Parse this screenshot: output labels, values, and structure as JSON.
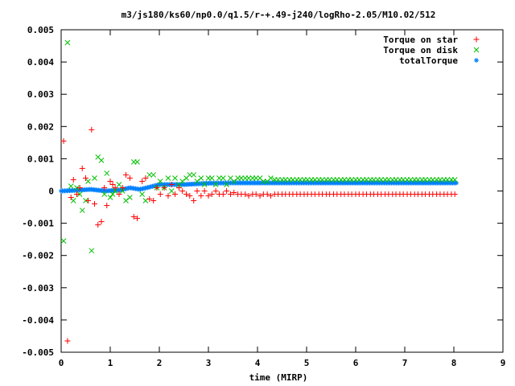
{
  "chart_data": {
    "type": "scatter",
    "title": "m3/js180/ks60/np0.0/q1.5/r-+.49-j240/logRho-2.05/M10.02/512",
    "xlabel": "time (MIRP)",
    "ylabel": "",
    "xlim": [
      0,
      9
    ],
    "ylim": [
      -0.005,
      0.005
    ],
    "x_ticks": [
      "0",
      "1",
      "2",
      "3",
      "4",
      "5",
      "6",
      "7",
      "8",
      "9"
    ],
    "y_ticks": [
      "-0.005",
      "-0.004",
      "-0.003",
      "-0.002",
      "-0.001",
      "0",
      "0.001",
      "0.002",
      "0.003",
      "0.004",
      "0.005"
    ],
    "grid": false,
    "legend_position": "top-right",
    "series": [
      {
        "name": "Torque on star",
        "marker": "plus",
        "color": "#ff0000",
        "points": [
          [
            0.05,
            0.00155
          ],
          [
            0.13,
            -0.00465
          ],
          [
            0.2,
            -0.0002
          ],
          [
            0.25,
            0.00035
          ],
          [
            0.32,
            -0.0001
          ],
          [
            0.38,
            0.0001
          ],
          [
            0.43,
            0.0007
          ],
          [
            0.5,
            0.0004
          ],
          [
            0.55,
            -0.0003
          ],
          [
            0.62,
            0.0019
          ],
          [
            0.68,
            -0.0004
          ],
          [
            0.75,
            -0.00105
          ],
          [
            0.82,
            -0.00095
          ],
          [
            0.88,
            0.0001
          ],
          [
            0.93,
            -0.00045
          ],
          [
            1.0,
            0.0003
          ],
          [
            1.05,
            0.0002
          ],
          [
            1.1,
            0.0001
          ],
          [
            1.18,
            -0.0001
          ],
          [
            1.25,
            0.0001
          ],
          [
            1.32,
            0.0005
          ],
          [
            1.4,
            0.0004
          ],
          [
            1.48,
            -0.0008
          ],
          [
            1.55,
            -0.00085
          ],
          [
            1.65,
            0.0003
          ],
          [
            1.72,
            0.0004
          ],
          [
            1.8,
            -0.00025
          ],
          [
            1.88,
            -0.0003
          ],
          [
            1.95,
            0.0001
          ],
          [
            2.02,
            -0.0001
          ],
          [
            2.1,
            0.0001
          ],
          [
            2.18,
            -0.00015
          ],
          [
            2.25,
            0.0002
          ],
          [
            2.32,
            -0.0001
          ],
          [
            2.4,
            0.0001
          ],
          [
            2.47,
            0.0
          ],
          [
            2.55,
            -0.0001
          ],
          [
            2.62,
            -0.00015
          ],
          [
            2.7,
            -0.0003
          ],
          [
            2.77,
            0.0
          ],
          [
            2.85,
            -0.00015
          ],
          [
            2.92,
            0.0
          ],
          [
            3.0,
            -0.00015
          ],
          [
            3.07,
            -0.0001
          ],
          [
            3.15,
            0.0
          ],
          [
            3.22,
            -0.0001
          ],
          [
            3.3,
            -0.0001
          ],
          [
            3.37,
            0.0
          ],
          [
            3.45,
            -0.0001
          ],
          [
            3.52,
            -5e-05
          ],
          [
            3.6,
            -0.0001
          ],
          [
            3.67,
            -0.0001
          ],
          [
            3.75,
            -0.0001
          ],
          [
            3.82,
            -0.00015
          ],
          [
            3.9,
            -0.0001
          ],
          [
            3.97,
            -0.0001
          ],
          [
            4.05,
            -0.00015
          ],
          [
            4.12,
            -0.0001
          ],
          [
            4.2,
            -0.0001
          ],
          [
            4.27,
            -0.00015
          ],
          [
            4.35,
            -0.0001
          ],
          [
            4.42,
            -0.0001
          ],
          [
            4.5,
            -0.0001
          ],
          [
            4.57,
            -0.0001
          ],
          [
            4.65,
            -0.0001
          ],
          [
            4.72,
            -0.0001
          ],
          [
            4.8,
            -0.0001
          ],
          [
            4.87,
            -0.0001
          ],
          [
            4.95,
            -0.0001
          ],
          [
            5.02,
            -0.0001
          ],
          [
            5.1,
            -0.0001
          ],
          [
            5.17,
            -0.0001
          ],
          [
            5.25,
            -0.0001
          ],
          [
            5.32,
            -0.0001
          ],
          [
            5.4,
            -0.0001
          ],
          [
            5.47,
            -0.0001
          ],
          [
            5.55,
            -0.0001
          ],
          [
            5.62,
            -0.0001
          ],
          [
            5.7,
            -0.0001
          ],
          [
            5.77,
            -0.0001
          ],
          [
            5.85,
            -0.0001
          ],
          [
            5.92,
            -0.0001
          ],
          [
            6.0,
            -0.0001
          ],
          [
            6.07,
            -0.0001
          ],
          [
            6.15,
            -0.0001
          ],
          [
            6.22,
            -0.0001
          ],
          [
            6.3,
            -0.0001
          ],
          [
            6.37,
            -0.0001
          ],
          [
            6.45,
            -0.0001
          ],
          [
            6.52,
            -0.0001
          ],
          [
            6.6,
            -0.0001
          ],
          [
            6.67,
            -0.0001
          ],
          [
            6.75,
            -0.0001
          ],
          [
            6.82,
            -0.0001
          ],
          [
            6.9,
            -0.0001
          ],
          [
            6.97,
            -0.0001
          ],
          [
            7.05,
            -0.0001
          ],
          [
            7.12,
            -0.0001
          ],
          [
            7.2,
            -0.0001
          ],
          [
            7.27,
            -0.0001
          ],
          [
            7.35,
            -0.0001
          ],
          [
            7.42,
            -0.0001
          ],
          [
            7.5,
            -0.0001
          ],
          [
            7.57,
            -0.0001
          ],
          [
            7.65,
            -0.0001
          ],
          [
            7.72,
            -0.0001
          ],
          [
            7.8,
            -0.0001
          ],
          [
            7.87,
            -0.0001
          ],
          [
            7.95,
            -0.0001
          ],
          [
            8.02,
            -0.0001
          ]
        ]
      },
      {
        "name": "Torque on disk",
        "marker": "cross",
        "color": "#00c000",
        "points": [
          [
            0.05,
            -0.00155
          ],
          [
            0.13,
            0.0046
          ],
          [
            0.2,
            0.00015
          ],
          [
            0.25,
            -0.0003
          ],
          [
            0.32,
            0.0001
          ],
          [
            0.38,
            -0.0001
          ],
          [
            0.43,
            -0.0006
          ],
          [
            0.5,
            -0.0003
          ],
          [
            0.55,
            0.0003
          ],
          [
            0.62,
            -0.00185
          ],
          [
            0.68,
            0.0004
          ],
          [
            0.75,
            0.00105
          ],
          [
            0.82,
            0.00095
          ],
          [
            0.88,
            -0.0001
          ],
          [
            0.93,
            0.00055
          ],
          [
            1.0,
            -0.0002
          ],
          [
            1.05,
            -0.0001
          ],
          [
            1.1,
            0.0
          ],
          [
            1.18,
            0.0002
          ],
          [
            1.25,
            0.0
          ],
          [
            1.32,
            -0.0003
          ],
          [
            1.4,
            -0.0002
          ],
          [
            1.48,
            0.0009
          ],
          [
            1.55,
            0.0009
          ],
          [
            1.65,
            -0.0001
          ],
          [
            1.72,
            -0.0003
          ],
          [
            1.8,
            0.0005
          ],
          [
            1.88,
            0.0005
          ],
          [
            1.95,
            0.0001
          ],
          [
            2.02,
            0.0003
          ],
          [
            2.1,
            0.0001
          ],
          [
            2.18,
            0.0004
          ],
          [
            2.25,
            0.0
          ],
          [
            2.32,
            0.0004
          ],
          [
            2.4,
            0.0002
          ],
          [
            2.47,
            0.0003
          ],
          [
            2.55,
            0.0004
          ],
          [
            2.62,
            0.0005
          ],
          [
            2.7,
            0.0005
          ],
          [
            2.77,
            0.0003
          ],
          [
            2.85,
            0.0004
          ],
          [
            2.92,
            0.0002
          ],
          [
            3.0,
            0.0004
          ],
          [
            3.07,
            0.0004
          ],
          [
            3.15,
            0.0002
          ],
          [
            3.22,
            0.0004
          ],
          [
            3.3,
            0.0004
          ],
          [
            3.37,
            0.0002
          ],
          [
            3.45,
            0.0004
          ],
          [
            3.52,
            0.0003
          ],
          [
            3.6,
            0.0004
          ],
          [
            3.67,
            0.0004
          ],
          [
            3.75,
            0.0004
          ],
          [
            3.82,
            0.0004
          ],
          [
            3.9,
            0.0004
          ],
          [
            3.97,
            0.0004
          ],
          [
            4.05,
            0.0004
          ],
          [
            4.12,
            0.0003
          ],
          [
            4.2,
            0.0003
          ],
          [
            4.27,
            0.0004
          ],
          [
            4.35,
            0.00035
          ],
          [
            4.42,
            0.00035
          ],
          [
            4.5,
            0.00035
          ],
          [
            4.57,
            0.00035
          ],
          [
            4.65,
            0.00035
          ],
          [
            4.72,
            0.00035
          ],
          [
            4.8,
            0.00035
          ],
          [
            4.87,
            0.00035
          ],
          [
            4.95,
            0.00035
          ],
          [
            5.02,
            0.00035
          ],
          [
            5.1,
            0.00035
          ],
          [
            5.17,
            0.00035
          ],
          [
            5.25,
            0.00035
          ],
          [
            5.32,
            0.00035
          ],
          [
            5.4,
            0.00035
          ],
          [
            5.47,
            0.00035
          ],
          [
            5.55,
            0.00035
          ],
          [
            5.62,
            0.00035
          ],
          [
            5.7,
            0.00035
          ],
          [
            5.77,
            0.00035
          ],
          [
            5.85,
            0.00035
          ],
          [
            5.92,
            0.00035
          ],
          [
            6.0,
            0.00035
          ],
          [
            6.07,
            0.00035
          ],
          [
            6.15,
            0.00035
          ],
          [
            6.22,
            0.00035
          ],
          [
            6.3,
            0.00035
          ],
          [
            6.37,
            0.00035
          ],
          [
            6.45,
            0.00035
          ],
          [
            6.52,
            0.00035
          ],
          [
            6.6,
            0.00035
          ],
          [
            6.67,
            0.00035
          ],
          [
            6.75,
            0.00035
          ],
          [
            6.82,
            0.00035
          ],
          [
            6.9,
            0.00035
          ],
          [
            6.97,
            0.00035
          ],
          [
            7.05,
            0.00035
          ],
          [
            7.12,
            0.00035
          ],
          [
            7.2,
            0.00035
          ],
          [
            7.27,
            0.00035
          ],
          [
            7.35,
            0.00035
          ],
          [
            7.42,
            0.00035
          ],
          [
            7.5,
            0.00035
          ],
          [
            7.57,
            0.00035
          ],
          [
            7.65,
            0.00035
          ],
          [
            7.72,
            0.00035
          ],
          [
            7.8,
            0.00035
          ],
          [
            7.87,
            0.00035
          ],
          [
            7.95,
            0.00035
          ],
          [
            8.02,
            0.00035
          ]
        ]
      },
      {
        "name": "totalTorque",
        "marker": "star",
        "color": "#0080ff",
        "curve": [
          [
            0.0,
            0.0
          ],
          [
            0.3,
            2e-05
          ],
          [
            0.6,
            5e-05
          ],
          [
            0.9,
            0.0
          ],
          [
            1.2,
            3e-05
          ],
          [
            1.4,
            0.0001
          ],
          [
            1.6,
            5e-05
          ],
          [
            1.8,
            0.00012
          ],
          [
            2.0,
            0.0002
          ],
          [
            2.5,
            0.0002
          ],
          [
            3.0,
            0.00024
          ],
          [
            3.5,
            0.00025
          ],
          [
            4.0,
            0.00025
          ],
          [
            8.05,
            0.00025
          ]
        ],
        "count": 330
      }
    ]
  }
}
